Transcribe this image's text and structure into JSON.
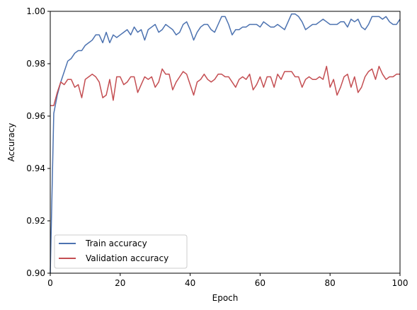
{
  "chart_data": {
    "type": "line",
    "title": "",
    "xlabel": "Epoch",
    "ylabel": "Accuracy",
    "xlim": [
      0,
      100
    ],
    "ylim": [
      0.9,
      1.0
    ],
    "xticks": [
      0,
      20,
      40,
      60,
      80,
      100
    ],
    "xtick_labels": [
      "0",
      "20",
      "40",
      "60",
      "80",
      "100"
    ],
    "yticks": [
      0.9,
      0.92,
      0.94,
      0.96,
      0.98,
      1.0
    ],
    "ytick_labels": [
      "0.90",
      "0.92",
      "0.94",
      "0.96",
      "0.98",
      "1.00"
    ],
    "grid": false,
    "legend_position": "lower-left",
    "series": [
      {
        "name": "Train accuracy",
        "color": "#4c72b0",
        "x": [
          0,
          1,
          2,
          3,
          4,
          5,
          6,
          7,
          8,
          9,
          10,
          11,
          12,
          13,
          14,
          15,
          16,
          17,
          18,
          19,
          20,
          21,
          22,
          23,
          24,
          25,
          26,
          27,
          28,
          29,
          30,
          31,
          32,
          33,
          34,
          35,
          36,
          37,
          38,
          39,
          40,
          41,
          42,
          43,
          44,
          45,
          46,
          47,
          48,
          49,
          50,
          51,
          52,
          53,
          54,
          55,
          56,
          57,
          58,
          59,
          60,
          61,
          62,
          63,
          64,
          65,
          66,
          67,
          68,
          69,
          70,
          71,
          72,
          73,
          74,
          75,
          76,
          77,
          78,
          79,
          80,
          81,
          82,
          83,
          84,
          85,
          86,
          87,
          88,
          89,
          90,
          91,
          92,
          93,
          94,
          95,
          96,
          97,
          98,
          99,
          100
        ],
        "values": [
          0.9,
          0.961,
          0.968,
          0.973,
          0.977,
          0.981,
          0.982,
          0.984,
          0.985,
          0.985,
          0.987,
          0.988,
          0.989,
          0.991,
          0.991,
          0.988,
          0.992,
          0.988,
          0.991,
          0.99,
          0.991,
          0.992,
          0.993,
          0.991,
          0.994,
          0.992,
          0.993,
          0.989,
          0.993,
          0.994,
          0.995,
          0.992,
          0.993,
          0.995,
          0.994,
          0.993,
          0.991,
          0.992,
          0.995,
          0.996,
          0.993,
          0.989,
          0.992,
          0.994,
          0.995,
          0.995,
          0.993,
          0.992,
          0.995,
          0.998,
          0.998,
          0.995,
          0.991,
          0.993,
          0.993,
          0.994,
          0.994,
          0.995,
          0.995,
          0.995,
          0.994,
          0.996,
          0.995,
          0.994,
          0.994,
          0.995,
          0.994,
          0.993,
          0.996,
          0.999,
          0.999,
          0.998,
          0.996,
          0.993,
          0.994,
          0.995,
          0.995,
          0.996,
          0.997,
          0.996,
          0.995,
          0.995,
          0.995,
          0.996,
          0.996,
          0.994,
          0.997,
          0.996,
          0.997,
          0.994,
          0.993,
          0.995,
          0.998,
          0.998,
          0.998,
          0.997,
          0.998,
          0.996,
          0.995,
          0.995,
          0.997
        ]
      },
      {
        "name": "Validation accuracy",
        "color": "#c44e52",
        "x": [
          0,
          1,
          2,
          3,
          4,
          5,
          6,
          7,
          8,
          9,
          10,
          11,
          12,
          13,
          14,
          15,
          16,
          17,
          18,
          19,
          20,
          21,
          22,
          23,
          24,
          25,
          26,
          27,
          28,
          29,
          30,
          31,
          32,
          33,
          34,
          35,
          36,
          37,
          38,
          39,
          40,
          41,
          42,
          43,
          44,
          45,
          46,
          47,
          48,
          49,
          50,
          51,
          52,
          53,
          54,
          55,
          56,
          57,
          58,
          59,
          60,
          61,
          62,
          63,
          64,
          65,
          66,
          67,
          68,
          69,
          70,
          71,
          72,
          73,
          74,
          75,
          76,
          77,
          78,
          79,
          80,
          81,
          82,
          83,
          84,
          85,
          86,
          87,
          88,
          89,
          90,
          91,
          92,
          93,
          94,
          95,
          96,
          97,
          98,
          99,
          100
        ],
        "values": [
          0.964,
          0.964,
          0.969,
          0.973,
          0.972,
          0.974,
          0.974,
          0.971,
          0.972,
          0.967,
          0.974,
          0.975,
          0.976,
          0.975,
          0.973,
          0.967,
          0.968,
          0.974,
          0.966,
          0.975,
          0.975,
          0.972,
          0.973,
          0.975,
          0.975,
          0.969,
          0.972,
          0.975,
          0.974,
          0.975,
          0.971,
          0.973,
          0.978,
          0.976,
          0.976,
          0.97,
          0.973,
          0.975,
          0.977,
          0.976,
          0.972,
          0.968,
          0.973,
          0.974,
          0.976,
          0.974,
          0.973,
          0.974,
          0.976,
          0.976,
          0.975,
          0.975,
          0.973,
          0.971,
          0.974,
          0.975,
          0.974,
          0.976,
          0.97,
          0.972,
          0.975,
          0.971,
          0.975,
          0.975,
          0.971,
          0.976,
          0.974,
          0.977,
          0.977,
          0.977,
          0.975,
          0.975,
          0.971,
          0.974,
          0.975,
          0.974,
          0.974,
          0.975,
          0.974,
          0.979,
          0.971,
          0.974,
          0.968,
          0.971,
          0.975,
          0.976,
          0.971,
          0.975,
          0.969,
          0.971,
          0.975,
          0.977,
          0.978,
          0.974,
          0.979,
          0.976,
          0.974,
          0.975,
          0.975,
          0.976,
          0.976
        ]
      }
    ]
  }
}
